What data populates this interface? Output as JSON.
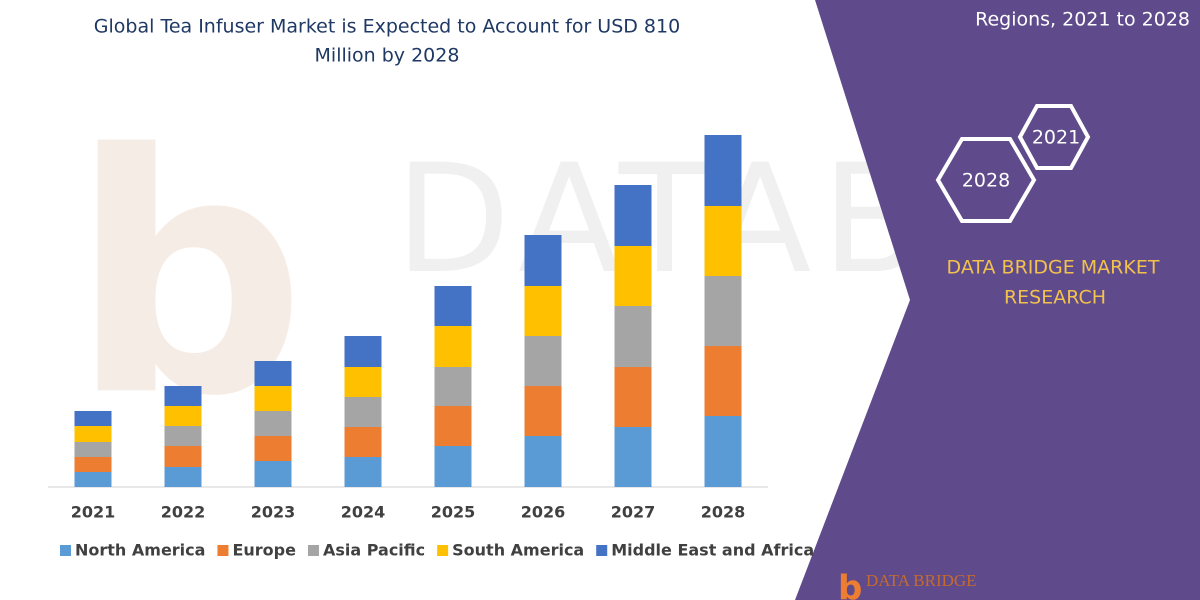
{
  "chart_data": {
    "type": "stacked-bar",
    "title": [
      "Global Tea Infuser Market is Expected to Account for USD 810",
      "Million by 2028"
    ],
    "categories": [
      "2021",
      "2022",
      "2023",
      "2024",
      "2025",
      "2026",
      "2027",
      "2028"
    ],
    "series": [
      {
        "name": "North America",
        "color": "#5b9bd5",
        "values": [
          15,
          20,
          26,
          30,
          41,
          51,
          60,
          71
        ]
      },
      {
        "name": "Europe",
        "color": "#ed7d31",
        "values": [
          15,
          21,
          25,
          30,
          40,
          50,
          60,
          70
        ]
      },
      {
        "name": "Asia Pacific",
        "color": "#a5a5a5",
        "values": [
          15,
          20,
          25,
          30,
          39,
          50,
          61,
          70
        ]
      },
      {
        "name": "South America",
        "color": "#ffc000",
        "values": [
          16,
          20,
          25,
          30,
          41,
          50,
          60,
          70
        ]
      },
      {
        "name": "Middle East and Africa",
        "color": "#4472c4",
        "values": [
          15,
          20,
          25,
          31,
          40,
          51,
          61,
          71
        ]
      }
    ],
    "ylim": [
      0,
      360
    ]
  },
  "panel": {
    "heading": "Regions, 2021 to 2028",
    "hex_small": "2021",
    "hex_large": "2028",
    "brand": [
      "DATA BRIDGE MARKET",
      "RESEARCH"
    ],
    "logo": "DATA BRIDGE"
  }
}
